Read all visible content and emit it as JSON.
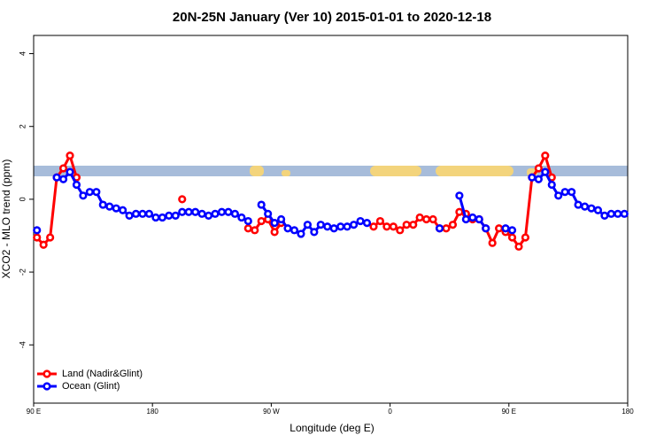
{
  "chart_data": {
    "type": "line",
    "title": "20N-25N January (Ver 10)   2015-01-01 to 2020-12-18",
    "xlabel": "Longitude (deg E)",
    "ylabel": "XCO2 - MLO trend (ppm)",
    "x": [
      92.5,
      97.5,
      102.5,
      107.5,
      112.5,
      117.5,
      122.5,
      127.5,
      132.5,
      137.5,
      142.5,
      147.5,
      152.5,
      157.5,
      162.5,
      167.5,
      172.5,
      177.5,
      182.5,
      187.5,
      192.5,
      197.5,
      202.5,
      207.5,
      212.5,
      217.5,
      222.5,
      227.5,
      232.5,
      237.5,
      242.5,
      247.5,
      252.5,
      257.5,
      262.5,
      267.5,
      272.5,
      277.5,
      282.5,
      287.5,
      292.5,
      297.5,
      302.5,
      307.5,
      312.5,
      317.5,
      322.5,
      327.5,
      332.5,
      337.5,
      342.5,
      347.5,
      352.5,
      357.5,
      362.5,
      367.5,
      372.5,
      377.5,
      382.5,
      387.5,
      392.5,
      397.5,
      402.5,
      407.5,
      412.5,
      417.5,
      422.5,
      427.5,
      432.5,
      437.5,
      442.5,
      447.5,
      452.5,
      457.5,
      462.5,
      467.5,
      472.5,
      477.5,
      482.5,
      487.5,
      492.5,
      497.5,
      502.5,
      507.5,
      512.5,
      517.5,
      522.5,
      527.5,
      532.5,
      537.5
    ],
    "series": [
      {
        "name": "Land (Nadir&Glint)",
        "color": "#ff0000",
        "values": [
          -1.05,
          -1.25,
          -1.05,
          0.6,
          0.85,
          1.2,
          0.6,
          null,
          null,
          null,
          null,
          null,
          null,
          null,
          null,
          null,
          null,
          null,
          null,
          null,
          null,
          null,
          0.0,
          null,
          null,
          null,
          null,
          null,
          null,
          null,
          null,
          null,
          -0.8,
          -0.85,
          -0.6,
          -0.55,
          -0.9,
          -0.65,
          null,
          null,
          null,
          null,
          null,
          null,
          null,
          null,
          null,
          null,
          null,
          null,
          null,
          -0.75,
          -0.6,
          -0.75,
          -0.75,
          -0.85,
          -0.7,
          -0.7,
          -0.5,
          -0.55,
          -0.55,
          -0.8,
          -0.8,
          -0.7,
          -0.35,
          -0.4,
          -0.55,
          -0.55,
          -0.8,
          -1.2,
          -0.8,
          -0.9,
          -1.05,
          -1.3,
          -1.05,
          0.6,
          0.85,
          1.2,
          0.6,
          null,
          null,
          null,
          null,
          null,
          null,
          null,
          null,
          null,
          null,
          null
        ]
      },
      {
        "name": "Ocean (Glint)",
        "color": "#0000ff",
        "values": [
          -0.85,
          null,
          null,
          0.6,
          0.55,
          0.75,
          0.4,
          0.1,
          0.2,
          0.2,
          -0.15,
          -0.2,
          -0.25,
          -0.3,
          -0.45,
          -0.4,
          -0.4,
          -0.4,
          -0.5,
          -0.5,
          -0.45,
          -0.45,
          -0.35,
          -0.35,
          -0.35,
          -0.4,
          -0.45,
          -0.4,
          -0.35,
          -0.35,
          -0.4,
          -0.5,
          -0.6,
          null,
          -0.15,
          -0.4,
          -0.65,
          -0.55,
          -0.8,
          -0.85,
          -0.95,
          -0.7,
          -0.9,
          -0.7,
          -0.75,
          -0.8,
          -0.75,
          -0.75,
          -0.7,
          -0.6,
          -0.65,
          null,
          null,
          null,
          null,
          null,
          null,
          null,
          null,
          null,
          null,
          -0.8,
          null,
          null,
          0.1,
          -0.55,
          -0.5,
          -0.55,
          -0.8,
          null,
          null,
          -0.8,
          -0.85,
          null,
          null,
          0.6,
          0.55,
          0.75,
          0.4,
          0.1,
          0.2,
          0.2,
          -0.15,
          -0.2,
          -0.25,
          -0.3,
          -0.45,
          -0.4,
          -0.4,
          -0.4
        ]
      }
    ],
    "xlim": [
      90,
      540
    ],
    "xticks": [
      {
        "value": 90,
        "label": "90 E"
      },
      180,
      {
        "value": 270,
        "label": "90 W"
      },
      {
        "value": 360,
        "label": "0"
      },
      {
        "value": 450,
        "label": "90 E"
      },
      {
        "value": 540,
        "label": "180"
      }
    ],
    "ylim": [
      -5.6,
      4.5
    ],
    "yticks": [
      -4,
      -2,
      0,
      2,
      4
    ],
    "legend": "bottomleft"
  }
}
